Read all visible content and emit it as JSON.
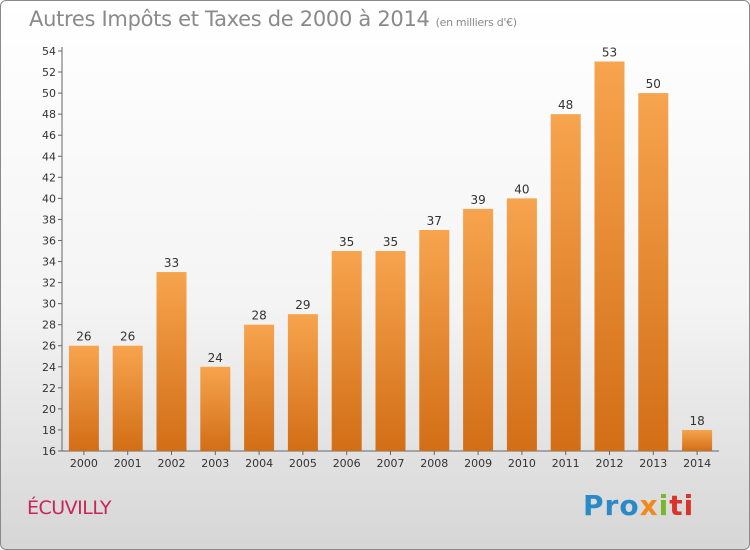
{
  "header": {
    "title": "Autres Impôts et Taxes de 2000 à 2014",
    "unit": "(en milliers d'€)"
  },
  "footer": {
    "commune": "ÉCUVILLY",
    "logo": {
      "p1": "Pro",
      "p2": "x",
      "p3": "i",
      "p4": "ti"
    }
  },
  "colors": {
    "bar_top": "#f7a44e",
    "bar_bottom": "#d26e16",
    "commune": "#c8245a"
  },
  "chart_data": {
    "type": "bar",
    "title": "Autres Impôts et Taxes de 2000 à 2014",
    "subtitle": "(en milliers d'€)",
    "categories": [
      "2000",
      "2001",
      "2002",
      "2003",
      "2004",
      "2005",
      "2006",
      "2007",
      "2008",
      "2009",
      "2010",
      "2011",
      "2012",
      "2013",
      "2014"
    ],
    "values": [
      26,
      26,
      33,
      24,
      28,
      29,
      35,
      35,
      37,
      39,
      40,
      48,
      53,
      50,
      18
    ],
    "ylim": [
      16,
      54
    ],
    "yticks": [
      16,
      18,
      20,
      22,
      24,
      26,
      28,
      30,
      32,
      34,
      36,
      38,
      40,
      42,
      44,
      46,
      48,
      50,
      52,
      54
    ],
    "grid": false,
    "legend": "none"
  }
}
